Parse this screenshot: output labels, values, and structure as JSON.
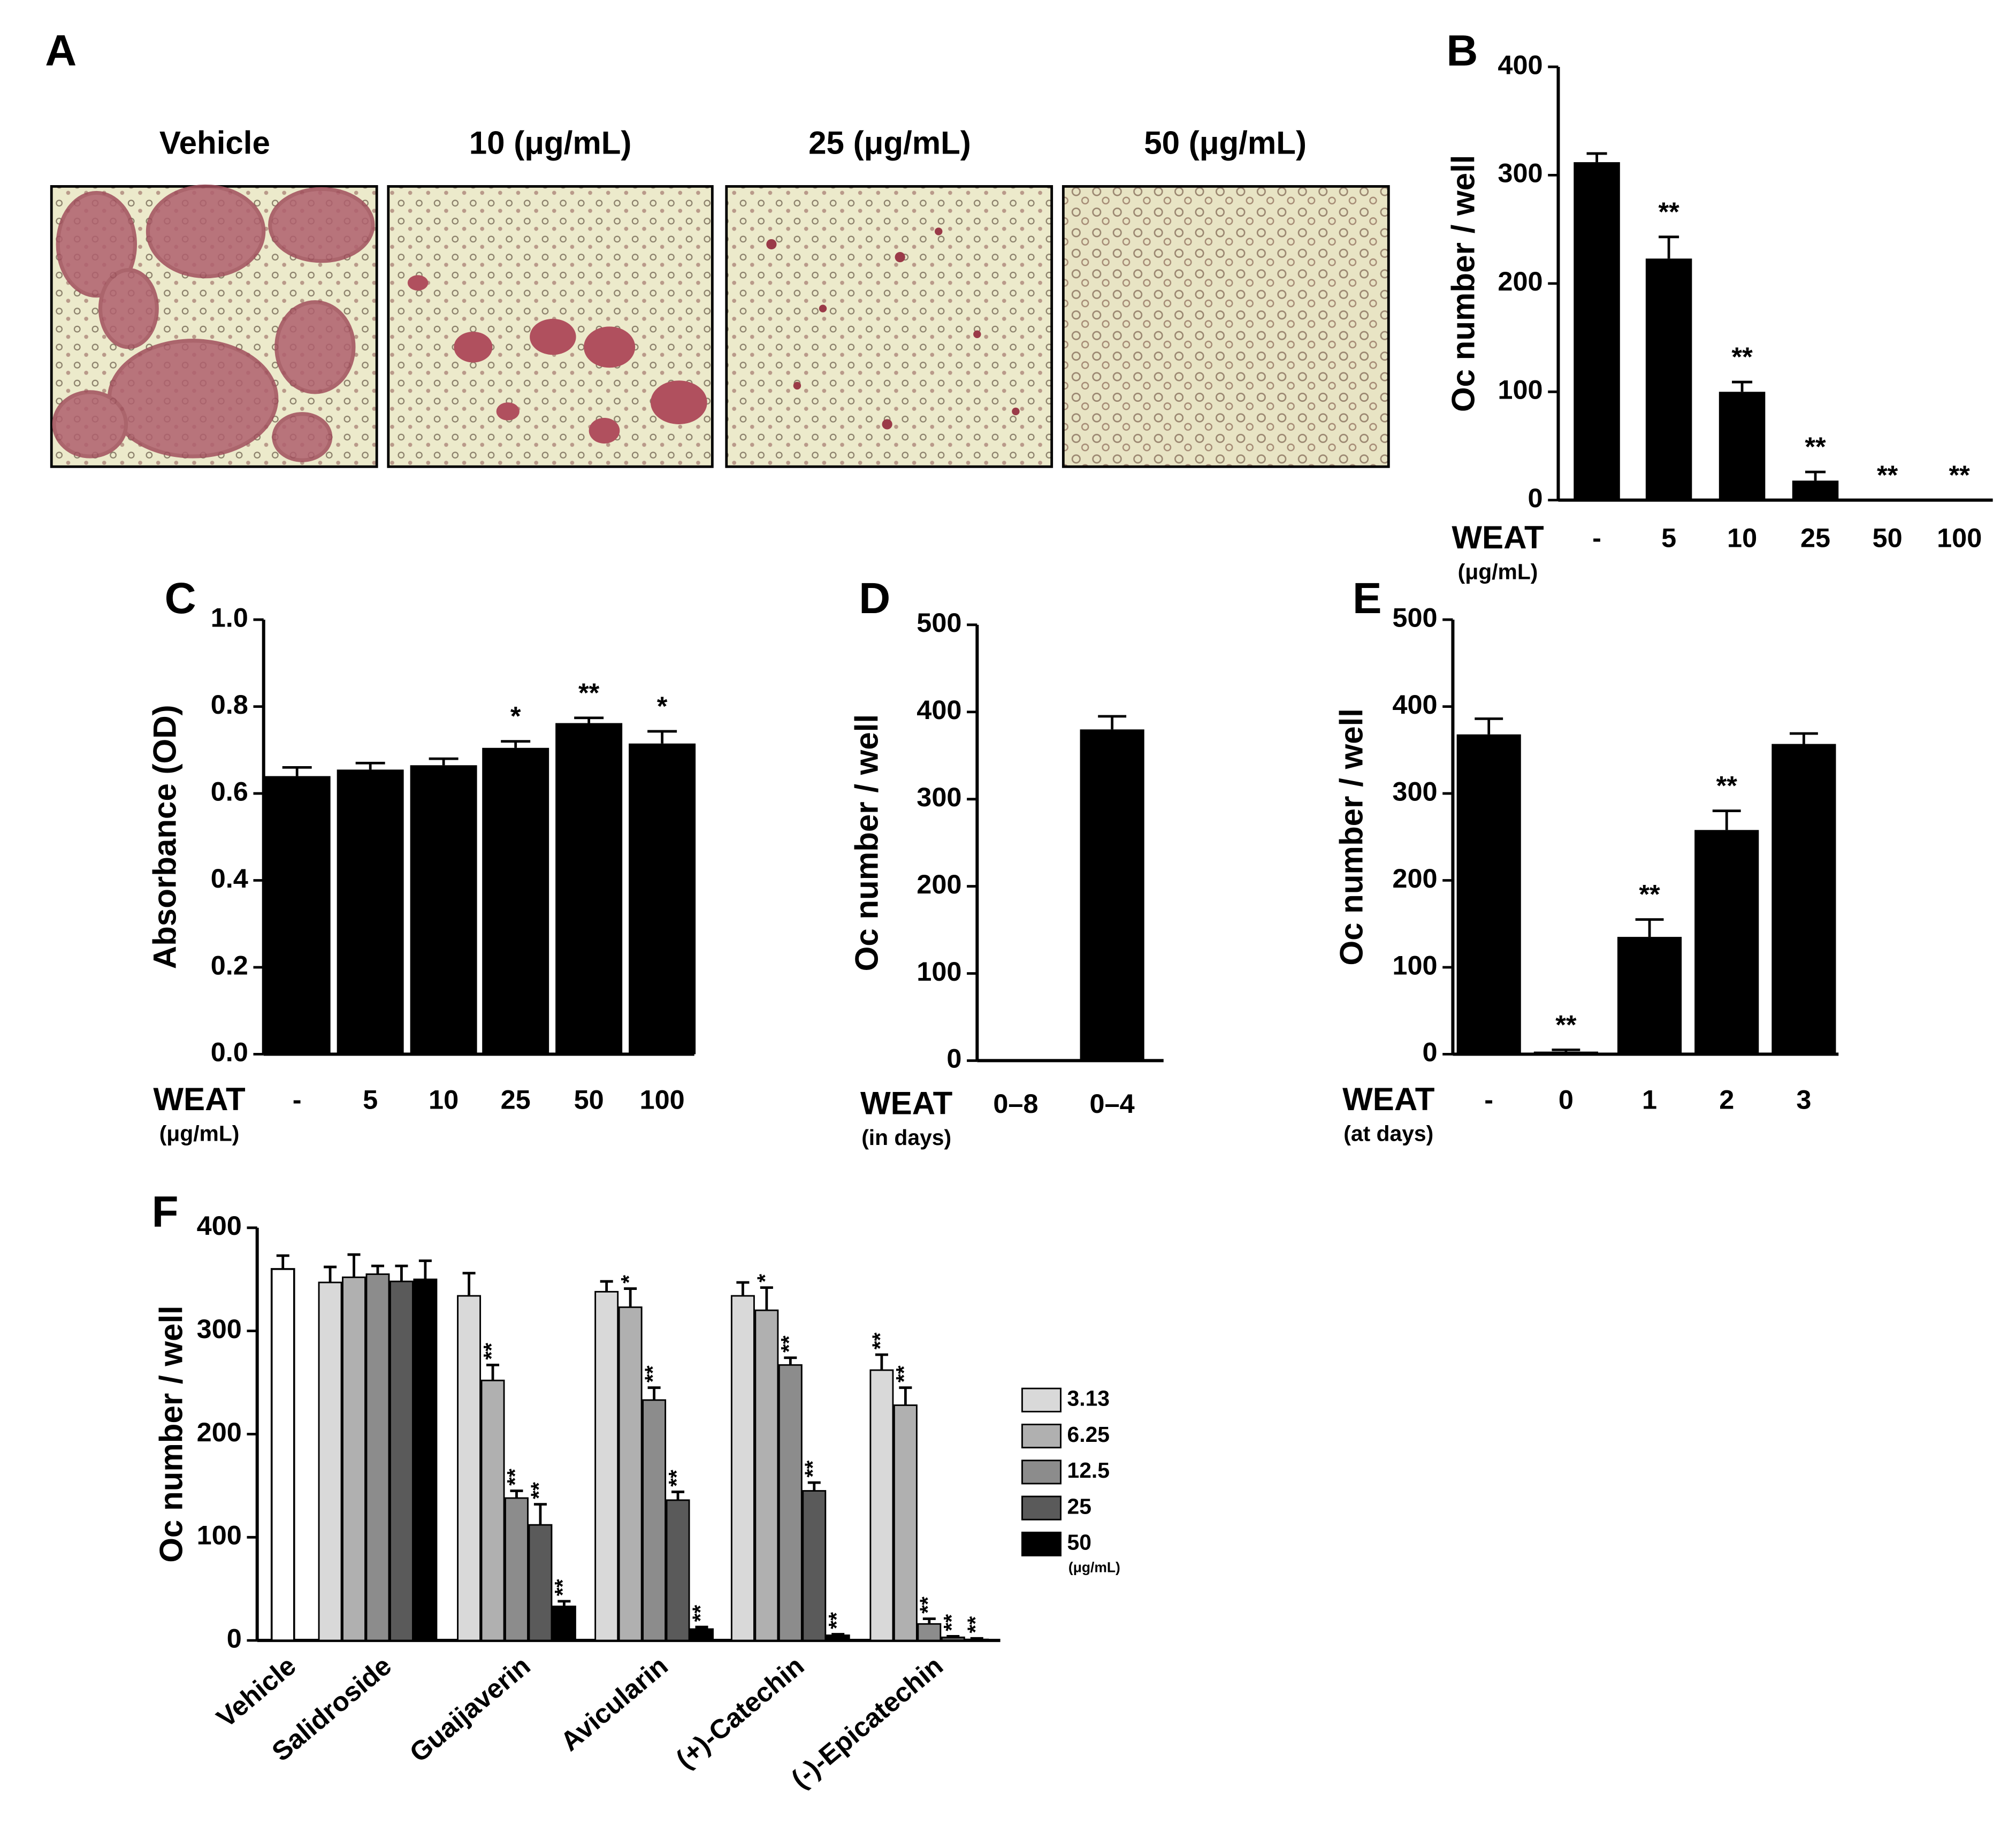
{
  "panel_a": {
    "label": "A",
    "titles": [
      "Vehicle",
      "10 (μg/mL)",
      "25 (μg/mL)",
      "50 (μg/mL)"
    ]
  },
  "chart_data": [
    {
      "type": "bar",
      "panel": "B",
      "ylabel": "Oc number / well",
      "xlabel": "WEAT",
      "xlabel_unit": "(μg/mL)",
      "categories": [
        "-",
        "5",
        "10",
        "25",
        "50",
        "100"
      ],
      "values": [
        312,
        223,
        100,
        18,
        0,
        0
      ],
      "errors": [
        8,
        20,
        9,
        8,
        0,
        0
      ],
      "significance": [
        null,
        "**",
        "**",
        "**",
        "**",
        "**"
      ],
      "ylim": [
        0,
        400
      ],
      "yticks": [
        0,
        100,
        200,
        300,
        400
      ],
      "color": "#000000"
    },
    {
      "type": "bar",
      "panel": "C",
      "ylabel": "Absorbance (OD)",
      "xlabel": "WEAT",
      "xlabel_unit": "(μg/mL)",
      "categories": [
        "-",
        "5",
        "10",
        "25",
        "50",
        "100"
      ],
      "values": [
        0.64,
        0.655,
        0.665,
        0.705,
        0.762,
        0.715
      ],
      "errors": [
        0.02,
        0.015,
        0.015,
        0.015,
        0.012,
        0.028
      ],
      "significance": [
        null,
        null,
        null,
        "*",
        "**",
        "*"
      ],
      "ylim": [
        0,
        1
      ],
      "yticks": [
        {
          "value": 0,
          "label": "0.0"
        },
        0.2,
        0.4,
        0.6,
        0.8,
        {
          "value": 1,
          "label": "1.0"
        }
      ],
      "color": "#000000"
    },
    {
      "type": "bar",
      "panel": "D",
      "ylabel": "Oc number / well",
      "xlabel": "WEAT",
      "xlabel_unit": "(in days)",
      "categories": [
        "0–8",
        "0–4"
      ],
      "values": [
        0,
        380
      ],
      "errors": [
        0,
        15
      ],
      "significance": [
        null,
        null
      ],
      "ylim": [
        0,
        500
      ],
      "yticks": [
        0,
        100,
        200,
        300,
        400,
        500
      ],
      "color": "#000000"
    },
    {
      "type": "bar",
      "panel": "E",
      "ylabel": "Oc number / well",
      "xlabel": "WEAT",
      "xlabel_unit": "(at days)",
      "categories": [
        "-",
        "0",
        "1",
        "2",
        "3"
      ],
      "values": [
        368,
        3,
        135,
        258,
        357
      ],
      "errors": [
        18,
        2,
        20,
        22,
        12
      ],
      "significance": [
        null,
        "**",
        "**",
        "**",
        null
      ],
      "ylim": [
        0,
        500
      ],
      "yticks": [
        0,
        100,
        200,
        300,
        400,
        500
      ],
      "color": "#000000"
    },
    {
      "type": "grouped_bar",
      "panel": "F",
      "ylabel": "Oc number / well",
      "categories": [
        "Vehicle",
        "Salidroside",
        "Guaijaverin",
        "Avicularin",
        "(+)-Catechin",
        "(-)-Epicatechin"
      ],
      "control_value": 360,
      "control_error": 13,
      "control_color": "#ffffff",
      "legend_unit": "(μg/mL)",
      "ylim": [
        0,
        400
      ],
      "yticks": [
        0,
        100,
        200,
        300,
        400
      ],
      "series": [
        {
          "name": "3.13",
          "color": "#d9d9d9",
          "values": [
            null,
            347,
            334,
            338,
            334,
            262
          ],
          "errors": [
            null,
            15,
            22,
            10,
            13,
            15
          ],
          "significance": [
            null,
            null,
            null,
            null,
            null,
            "**"
          ]
        },
        {
          "name": "6.25",
          "color": "#b0b0b0",
          "values": [
            null,
            352,
            252,
            323,
            320,
            228
          ],
          "errors": [
            null,
            22,
            15,
            18,
            22,
            17
          ],
          "significance": [
            null,
            null,
            "**",
            "*",
            "*",
            "**"
          ]
        },
        {
          "name": "12.5",
          "color": "#8c8c8c",
          "values": [
            null,
            355,
            138,
            233,
            267,
            16
          ],
          "errors": [
            null,
            8,
            7,
            12,
            7,
            5
          ],
          "significance": [
            null,
            null,
            "**",
            "**",
            "**",
            "**"
          ]
        },
        {
          "name": "25",
          "color": "#5a5a5a",
          "values": [
            null,
            348,
            112,
            136,
            145,
            3
          ],
          "errors": [
            null,
            15,
            20,
            8,
            8,
            1
          ],
          "significance": [
            null,
            null,
            "**",
            "**",
            "**",
            "**"
          ]
        },
        {
          "name": "50",
          "color": "#000000",
          "values": [
            null,
            350,
            33,
            11,
            5,
            1
          ],
          "errors": [
            null,
            18,
            5,
            2,
            1,
            1
          ],
          "significance": [
            null,
            null,
            "**",
            "**",
            "**",
            "**"
          ]
        }
      ]
    }
  ]
}
